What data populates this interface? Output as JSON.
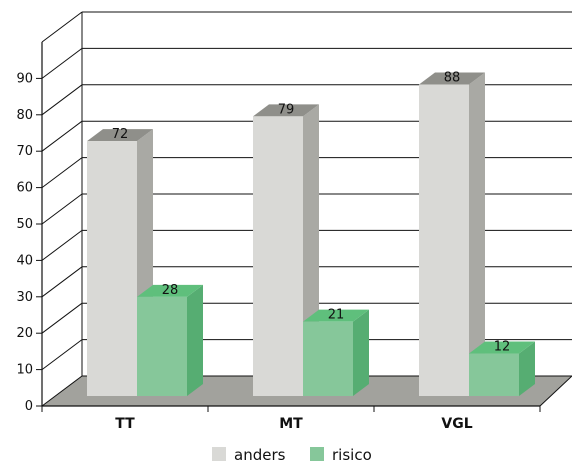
{
  "chart_data": {
    "type": "bar",
    "categories": [
      "TT",
      "MT",
      "VGL"
    ],
    "series": [
      {
        "name": "anders",
        "values": [
          72,
          79,
          88
        ],
        "color": "#d9d9d6"
      },
      {
        "name": "risico",
        "values": [
          28,
          21,
          12
        ],
        "color": "#86c79a"
      }
    ],
    "yticks": [
      0,
      10,
      20,
      30,
      40,
      50,
      60,
      70,
      80,
      90
    ],
    "ylim": [
      0,
      100
    ],
    "grid": true,
    "legend": "bottom-center",
    "three_d": true
  },
  "colors": {
    "anders_side": "#a9a9a4",
    "anders_top": "#8f8f8a",
    "risico_side": "#56ad72",
    "risico_top": "#5fbf7c",
    "floor": "#a2a29d",
    "wall_line": "#111111"
  }
}
